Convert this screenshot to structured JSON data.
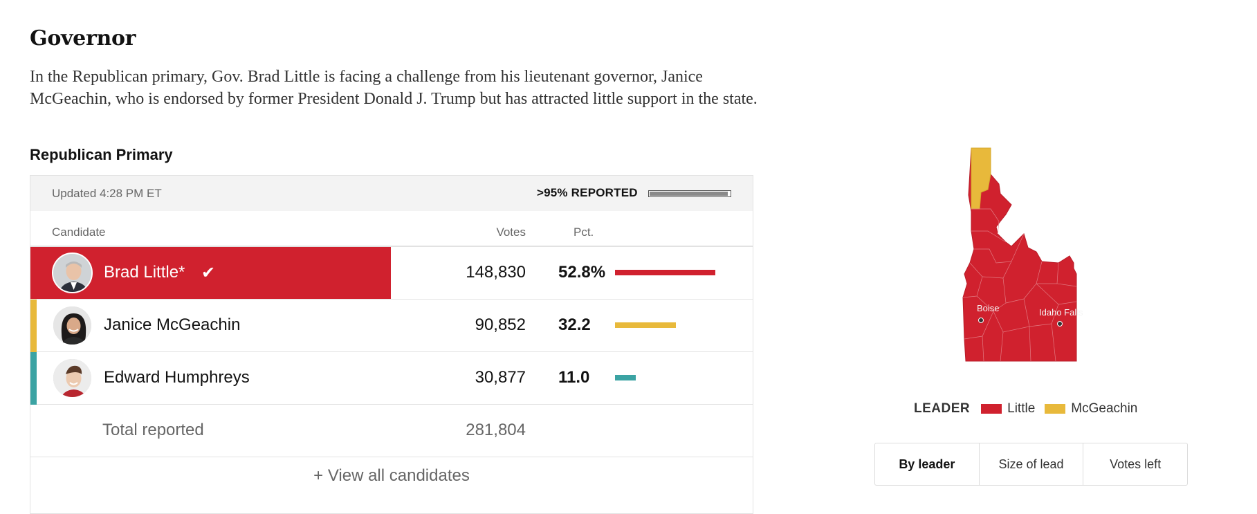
{
  "section": {
    "title": "Governor",
    "lede": "In the Republican primary, Gov. Brad Little is facing a challenge from his lieutenant governor, Janice McGeachin, who is endorsed by former President Donald J. Trump but has attracted little support in the state.",
    "race_label": "Republican Primary"
  },
  "status": {
    "updated": "Updated 4:28 PM ET",
    "reported": ">95% REPORTED",
    "reported_fraction": 0.97
  },
  "table": {
    "headers": {
      "candidate": "Candidate",
      "votes": "Votes",
      "pct": "Pct."
    },
    "candidates": [
      {
        "name": "Brad Little*",
        "votes": "148,830",
        "pct": "52.8%",
        "pct_value": 52.8,
        "color": "#d0212e",
        "winner": true,
        "winner_icon": "check-icon"
      },
      {
        "name": "Janice McGeachin",
        "votes": "90,852",
        "pct": "32.2",
        "pct_value": 32.2,
        "color": "#e8b93b",
        "winner": false
      },
      {
        "name": "Edward Humphreys",
        "votes": "30,877",
        "pct": "11.0",
        "pct_value": 11.0,
        "color": "#3ba3a3",
        "winner": false
      }
    ],
    "total_label": "Total reported",
    "total_votes": "281,804",
    "view_all": "+ View all candidates"
  },
  "map": {
    "cities": [
      "Boise",
      "Idaho Falls"
    ],
    "colors": {
      "little": "#d0212e",
      "mcgeachin": "#e8b93b"
    }
  },
  "legend": {
    "title": "LEADER",
    "items": [
      {
        "label": "Little",
        "color": "#d0212e"
      },
      {
        "label": "McGeachin",
        "color": "#e8b93b"
      }
    ]
  },
  "tabs": [
    {
      "label": "By leader",
      "active": true
    },
    {
      "label": "Size of lead",
      "active": false
    },
    {
      "label": "Votes left",
      "active": false
    }
  ]
}
